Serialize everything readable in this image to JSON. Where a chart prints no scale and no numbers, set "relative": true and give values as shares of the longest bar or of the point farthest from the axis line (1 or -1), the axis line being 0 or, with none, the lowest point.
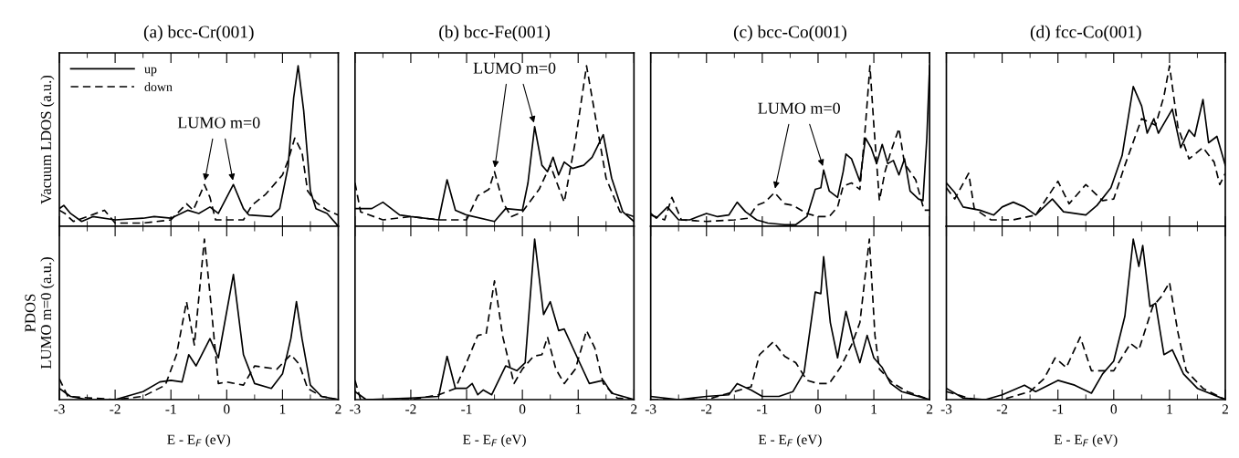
{
  "chart_data": [
    {
      "type": "line",
      "title": "(a) bcc-Cr(001)",
      "ylabel": "Vacuum LDOS (a.u.)",
      "relative": true,
      "xlim": [
        -3,
        2
      ],
      "xticks": [
        -3,
        {
          "value": -2.5,
          "label": null
        },
        -2,
        {
          "value": -1.5,
          "label": null
        },
        -1,
        {
          "value": -0.5,
          "label": null
        },
        0,
        {
          "value": 0.5,
          "label": null
        },
        1,
        {
          "value": 1.5,
          "label": null
        },
        2
      ],
      "tick_labels": false,
      "legend": "top left",
      "annotations": [
        "LUMO m=0"
      ],
      "series": [
        {
          "name": "up",
          "color": "#000000",
          "line_style": "solid",
          "x": [
            -3,
            -2.92,
            -2.8,
            -2.6,
            -2.4,
            -2.0,
            -1.5,
            -1.3,
            -1.0,
            -0.7,
            -0.5,
            -0.3,
            -0.15,
            0.12,
            0.3,
            0.4,
            0.8,
            0.95,
            1.1,
            1.2,
            1.28,
            1.38,
            1.5,
            1.6,
            1.8,
            2.0
          ],
          "values": [
            0.11,
            0.13,
            0.08,
            0.03,
            0.06,
            0.04,
            0.05,
            0.06,
            0.05,
            0.1,
            0.08,
            0.12,
            0.08,
            0.26,
            0.11,
            0.07,
            0.06,
            0.11,
            0.37,
            0.8,
            1,
            0.72,
            0.22,
            0.11,
            0.08,
            0
          ]
        },
        {
          "name": "down",
          "color": "#000000",
          "line_style": "dashed",
          "x": [
            -3,
            -2.9,
            -2.75,
            -2.5,
            -2.19,
            -2.0,
            -1.5,
            -1.0,
            -0.72,
            -0.6,
            -0.4,
            -0.3,
            -0.2,
            0.0,
            0.3,
            0.45,
            0.7,
            1.0,
            1.1,
            1.22,
            1.35,
            1.45,
            1.6,
            1.8,
            2.0
          ],
          "values": [
            0.1,
            0.08,
            0.03,
            0.06,
            0.1,
            0.02,
            0.02,
            0.04,
            0.14,
            0.1,
            0.26,
            0.18,
            0.04,
            0.04,
            0.04,
            0.13,
            0.2,
            0.32,
            0.41,
            0.55,
            0.46,
            0.22,
            0.15,
            0.1,
            0.07
          ]
        }
      ]
    },
    {
      "type": "line",
      "title": "(b) bcc-Fe(001)",
      "relative": true,
      "xlim": [
        -3,
        2
      ],
      "xticks": [
        -3,
        {
          "value": -2.5,
          "label": null
        },
        -2,
        {
          "value": -1.5,
          "label": null
        },
        -1,
        {
          "value": -0.5,
          "label": null
        },
        0,
        {
          "value": 0.5,
          "label": null
        },
        1,
        {
          "value": 1.5,
          "label": null
        },
        2
      ],
      "tick_labels": false,
      "annotations": [
        "LUMO m=0"
      ],
      "series": [
        {
          "color": "#000000",
          "line_style": "solid",
          "x": [
            -3,
            -2.7,
            -2.5,
            -2.2,
            -2,
            -1.5,
            -1.35,
            -1.2,
            -1.0,
            -0.5,
            -0.3,
            0,
            0.1,
            0.22,
            0.35,
            0.45,
            0.55,
            0.65,
            0.75,
            0.9,
            1.1,
            1.25,
            1.45,
            1.6,
            1.8,
            2.0
          ],
          "values": [
            0.11,
            0.11,
            0.15,
            0.07,
            0.06,
            0.04,
            0.29,
            0.1,
            0.07,
            0.03,
            0.11,
            0.1,
            0.27,
            0.62,
            0.38,
            0.34,
            0.43,
            0.32,
            0.4,
            0.36,
            0.38,
            0.43,
            0.57,
            0.3,
            0.09,
            0.03
          ]
        },
        {
          "color": "#000000",
          "line_style": "dashed",
          "x": [
            -3,
            -2.9,
            -2.5,
            -2,
            -1.5,
            -1.0,
            -0.8,
            -0.6,
            -0.5,
            -0.35,
            -0.2,
            0,
            0.3,
            0.5,
            0.75,
            0.95,
            1.15,
            1.3,
            1.5,
            1.75,
            2
          ],
          "values": [
            0.27,
            0.09,
            0.04,
            0.06,
            0.04,
            0.04,
            0.19,
            0.23,
            0.34,
            0.15,
            0.06,
            0.09,
            0.23,
            0.38,
            0.15,
            0.53,
            1,
            0.7,
            0.3,
            0.09,
            0.06
          ]
        }
      ]
    },
    {
      "type": "line",
      "title": "(c) bcc-Co(001)",
      "relative": true,
      "xlim": [
        -3,
        2
      ],
      "xticks": [
        -3,
        {
          "value": -2.5,
          "label": null
        },
        -2,
        {
          "value": -1.5,
          "label": null
        },
        -1,
        {
          "value": -0.5,
          "label": null
        },
        0,
        {
          "value": 0.5,
          "label": null
        },
        1,
        {
          "value": 1.5,
          "label": null
        },
        2
      ],
      "tick_labels": false,
      "annotations": [
        "LUMO m=0"
      ],
      "series": [
        {
          "color": "#000000",
          "line_style": "solid",
          "x": [
            -3,
            -2.9,
            -2.7,
            -2.5,
            -2.3,
            -2.0,
            -1.8,
            -1.6,
            -1.45,
            -1.3,
            -1.1,
            -0.9,
            -0.6,
            -0.4,
            -0.2,
            -0.05,
            0.05,
            0.1,
            0.2,
            0.35,
            0.45,
            0.5,
            0.6,
            0.75,
            0.85,
            0.95,
            1.05,
            1.15,
            1.25,
            1.35,
            1.45,
            1.55,
            1.65,
            1.8,
            1.88,
            1.95,
            2.0
          ],
          "values": [
            0.08,
            0.05,
            0.12,
            0.04,
            0.04,
            0.08,
            0.06,
            0.07,
            0.15,
            0.09,
            0.04,
            0.02,
            0.01,
            0.01,
            0.06,
            0.23,
            0.24,
            0.35,
            0.22,
            0.18,
            0.34,
            0.45,
            0.42,
            0.28,
            0.55,
            0.49,
            0.39,
            0.51,
            0.39,
            0.41,
            0.32,
            0.42,
            0.22,
            0.17,
            0.16,
            0.55,
            1
          ]
        },
        {
          "color": "#000000",
          "line_style": "dashed",
          "x": [
            -3,
            -2.75,
            -2.62,
            -2.45,
            -2.0,
            -1.5,
            -1.25,
            -1.1,
            -0.95,
            -0.78,
            -0.6,
            -0.45,
            -0.2,
            0,
            0.2,
            0.35,
            0.45,
            0.6,
            0.75,
            0.85,
            0.93,
            1.0,
            1.1,
            1.2,
            1.3,
            1.45,
            1.55,
            1.65,
            1.75,
            1.9,
            2.0
          ],
          "values": [
            0.07,
            0.04,
            0.18,
            0.04,
            0.03,
            0.04,
            0.05,
            0.13,
            0.15,
            0.21,
            0.14,
            0.13,
            0.08,
            0.06,
            0.06,
            0.12,
            0.25,
            0.27,
            0.23,
            0.63,
            1,
            0.63,
            0.16,
            0.34,
            0.46,
            0.61,
            0.39,
            0.34,
            0.29,
            0.1,
            0.1
          ]
        }
      ]
    },
    {
      "type": "line",
      "title": "(d) fcc-Co(001)",
      "relative": true,
      "xlim": [
        -3,
        2
      ],
      "xticks": [
        -3,
        {
          "value": -2.5,
          "label": null
        },
        -2,
        {
          "value": -1.5,
          "label": null
        },
        -1,
        {
          "value": -0.5,
          "label": null
        },
        0,
        {
          "value": 0.5,
          "label": null
        },
        1,
        {
          "value": 1.5,
          "label": null
        },
        2
      ],
      "tick_labels": false,
      "series": [
        {
          "color": "#000000",
          "line_style": "solid",
          "x": [
            -3,
            -2.85,
            -2.7,
            -2.4,
            -2.15,
            -2.0,
            -1.8,
            -1.6,
            -1.4,
            -1.1,
            -0.9,
            -0.5,
            -0.3,
            -0.05,
            0.15,
            0.35,
            0.5,
            0.6,
            0.72,
            0.8,
            1.05,
            1.2,
            1.35,
            1.45,
            1.6,
            1.7,
            1.85,
            2.0
          ],
          "values": [
            0.27,
            0.21,
            0.12,
            0.1,
            0.07,
            0.12,
            0.15,
            0.12,
            0.07,
            0.17,
            0.09,
            0.07,
            0.13,
            0.24,
            0.44,
            0.87,
            0.75,
            0.58,
            0.67,
            0.58,
            0.73,
            0.49,
            0.6,
            0.56,
            0.79,
            0.52,
            0.56,
            0.38
          ]
        },
        {
          "color": "#000000",
          "line_style": "dashed",
          "x": [
            -3,
            -2.85,
            -2.6,
            -2.5,
            -2.2,
            -1.8,
            -1.4,
            -1.0,
            -0.8,
            -0.5,
            -0.2,
            0,
            0.2,
            0.5,
            0.75,
            0.9,
            1.0,
            1.15,
            1.35,
            1.6,
            1.8,
            1.9,
            2.0
          ],
          "values": [
            0.24,
            0.17,
            0.33,
            0.11,
            0.04,
            0.04,
            0.07,
            0.28,
            0.14,
            0.26,
            0.16,
            0.17,
            0.38,
            0.67,
            0.63,
            0.81,
            1,
            0.62,
            0.42,
            0.49,
            0.4,
            0.26,
            0.33
          ]
        }
      ]
    },
    {
      "type": "line",
      "xlabel": "E - E$_{F}$ (eV)",
      "ylabel": "PDOS\nLUMO m=0 (a.u.)",
      "relative": true,
      "xlim": [
        -3,
        2
      ],
      "xticks": [
        -3,
        {
          "value": -2.5,
          "label": null
        },
        -2,
        {
          "value": -1.5,
          "label": null
        },
        -1,
        {
          "value": -0.5,
          "label": null
        },
        0,
        {
          "value": 0.5,
          "label": null
        },
        1,
        {
          "value": 1.5,
          "label": null
        },
        2
      ],
      "tick_labels": "x",
      "series": [
        {
          "color": "#000000",
          "line_style": "solid",
          "x": [
            -3,
            -2.8,
            -2.5,
            -2.0,
            -1.7,
            -1.5,
            -1.2,
            -1.0,
            -0.8,
            -0.68,
            -0.55,
            -0.3,
            -0.15,
            0.12,
            0.3,
            0.5,
            0.8,
            1.0,
            1.15,
            1.25,
            1.35,
            1.5,
            1.7,
            2.0
          ],
          "values": [
            0.07,
            0.02,
            0,
            0,
            0.03,
            0.05,
            0.11,
            0.12,
            0.11,
            0.28,
            0.21,
            0.38,
            0.26,
            0.78,
            0.28,
            0.1,
            0.07,
            0.16,
            0.38,
            0.61,
            0.38,
            0.09,
            0.02,
            0
          ]
        },
        {
          "color": "#000000",
          "line_style": "dashed",
          "x": [
            -3,
            -2.85,
            -2,
            -1.5,
            -1.1,
            -0.9,
            -0.72,
            -0.58,
            -0.4,
            -0.3,
            -0.15,
            0,
            0.3,
            0.5,
            0.9,
            1.15,
            1.3,
            1.45,
            1.7,
            2.0
          ],
          "values": [
            0.13,
            0.02,
            0,
            0.02,
            0.09,
            0.28,
            0.61,
            0.34,
            1,
            0.66,
            0.1,
            0.11,
            0.09,
            0.21,
            0.19,
            0.28,
            0.22,
            0.07,
            0.02,
            0
          ]
        }
      ]
    },
    {
      "type": "line",
      "xlabel": "E - E$_{F}$ (eV)",
      "relative": true,
      "xlim": [
        -3,
        2
      ],
      "xticks": [
        -3,
        {
          "value": -2.5,
          "label": null
        },
        -2,
        {
          "value": -1.5,
          "label": null
        },
        -1,
        {
          "value": -0.5,
          "label": null
        },
        0,
        {
          "value": 0.5,
          "label": null
        },
        1,
        {
          "value": 1.5,
          "label": null
        },
        2
      ],
      "tick_labels": "x",
      "series": [
        {
          "color": "#000000",
          "line_style": "solid",
          "x": [
            -3,
            -2.8,
            -2,
            -1.5,
            -1.35,
            -1.2,
            -1.0,
            -0.9,
            -0.8,
            -0.7,
            -0.55,
            -0.3,
            -0.1,
            0.05,
            0.22,
            0.38,
            0.5,
            0.65,
            0.75,
            1.0,
            1.2,
            1.45,
            1.6,
            2
          ],
          "values": [
            0.05,
            0,
            0.01,
            0.02,
            0.27,
            0.07,
            0.07,
            0.1,
            0.03,
            0.06,
            0.03,
            0.21,
            0.18,
            0.23,
            1,
            0.53,
            0.61,
            0.43,
            0.44,
            0.25,
            0.1,
            0.12,
            0.04,
            0
          ]
        },
        {
          "color": "#000000",
          "line_style": "dashed",
          "x": [
            -3,
            -2.9,
            -2,
            -1.5,
            -1.2,
            -1.05,
            -0.8,
            -0.65,
            -0.5,
            -0.35,
            -0.15,
            0,
            0.2,
            0.35,
            0.45,
            0.6,
            0.75,
            0.95,
            1.15,
            1.3,
            1.45,
            1.7,
            2
          ],
          "values": [
            0.12,
            0,
            0,
            0.03,
            0.07,
            0.19,
            0.4,
            0.41,
            0.74,
            0.39,
            0.1,
            0.19,
            0.27,
            0.28,
            0.39,
            0.19,
            0.1,
            0.19,
            0.43,
            0.32,
            0.1,
            0.01,
            0
          ]
        }
      ]
    },
    {
      "type": "line",
      "xlabel": "E - E$_{F}$ (eV)",
      "relative": true,
      "xlim": [
        -3,
        2
      ],
      "xticks": [
        -3,
        {
          "value": -2.5,
          "label": null
        },
        -2,
        {
          "value": -1.5,
          "label": null
        },
        -1,
        {
          "value": -0.5,
          "label": null
        },
        0,
        {
          "value": 0.5,
          "label": null
        },
        1,
        {
          "value": 1.5,
          "label": null
        },
        2
      ],
      "tick_labels": "x",
      "series": [
        {
          "color": "#000000",
          "line_style": "solid",
          "x": [
            -3,
            -2.5,
            -2,
            -1.6,
            -1.45,
            -1.2,
            -1.0,
            -0.7,
            -0.45,
            -0.25,
            -0.05,
            0.05,
            0.1,
            0.22,
            0.35,
            0.5,
            0.65,
            0.75,
            0.88,
            1.0,
            1.15,
            1.3,
            1.5,
            2
          ],
          "values": [
            0.02,
            0,
            0.02,
            0.03,
            0.1,
            0.06,
            0.02,
            0.02,
            0.05,
            0.17,
            0.67,
            0.66,
            0.89,
            0.48,
            0.26,
            0.55,
            0.34,
            0.23,
            0.4,
            0.26,
            0.2,
            0.1,
            0.05,
            0
          ]
        },
        {
          "color": "#000000",
          "line_style": "dashed",
          "x": [
            -3,
            -2.5,
            -2,
            -1.5,
            -1.2,
            -1.05,
            -0.8,
            -0.6,
            -0.4,
            -0.2,
            0,
            0.2,
            0.4,
            0.6,
            0.75,
            0.92,
            1.02,
            1.1,
            1.35,
            1.6,
            2
          ],
          "values": [
            0,
            0,
            0,
            0.05,
            0.08,
            0.28,
            0.36,
            0.27,
            0.23,
            0.12,
            0.1,
            0.1,
            0.2,
            0.34,
            0.48,
            1,
            0.4,
            0.19,
            0.1,
            0.05,
            0
          ]
        }
      ]
    },
    {
      "type": "line",
      "xlabel": "E - E$_{F}$ (eV)",
      "relative": true,
      "xlim": [
        -3,
        2
      ],
      "xticks": [
        -3,
        {
          "value": -2.5,
          "label": null
        },
        -2,
        {
          "value": -1.5,
          "label": null
        },
        -1,
        {
          "value": -0.5,
          "label": null
        },
        0,
        {
          "value": 0.5,
          "label": null
        },
        1,
        {
          "value": 1.5,
          "label": null
        },
        2
      ],
      "tick_labels": "x",
      "series": [
        {
          "color": "#000000",
          "line_style": "solid",
          "x": [
            -3,
            -2.7,
            -2.3,
            -2,
            -1.6,
            -1.4,
            -1.0,
            -0.7,
            -0.4,
            -0.2,
            0,
            0.2,
            0.35,
            0.45,
            0.52,
            0.65,
            0.75,
            0.9,
            1.05,
            1.25,
            1.5,
            2
          ],
          "values": [
            0.07,
            0.01,
            0,
            0.03,
            0.09,
            0.05,
            0.12,
            0.09,
            0.04,
            0.16,
            0.24,
            0.52,
            1,
            0.83,
            0.96,
            0.58,
            0.6,
            0.28,
            0.31,
            0.16,
            0.07,
            0
          ]
        },
        {
          "color": "#000000",
          "line_style": "dashed",
          "x": [
            -3,
            -2.5,
            -2,
            -1.5,
            -1.25,
            -1.05,
            -0.85,
            -0.6,
            -0.4,
            -0.2,
            0,
            0.3,
            0.45,
            0.7,
            0.85,
            1.0,
            1.15,
            1.3,
            1.6,
            2
          ],
          "values": [
            0.05,
            0,
            0,
            0.05,
            0.13,
            0.26,
            0.2,
            0.39,
            0.18,
            0.18,
            0.18,
            0.35,
            0.31,
            0.58,
            0.64,
            0.73,
            0.42,
            0.18,
            0.07,
            0
          ]
        }
      ]
    }
  ]
}
